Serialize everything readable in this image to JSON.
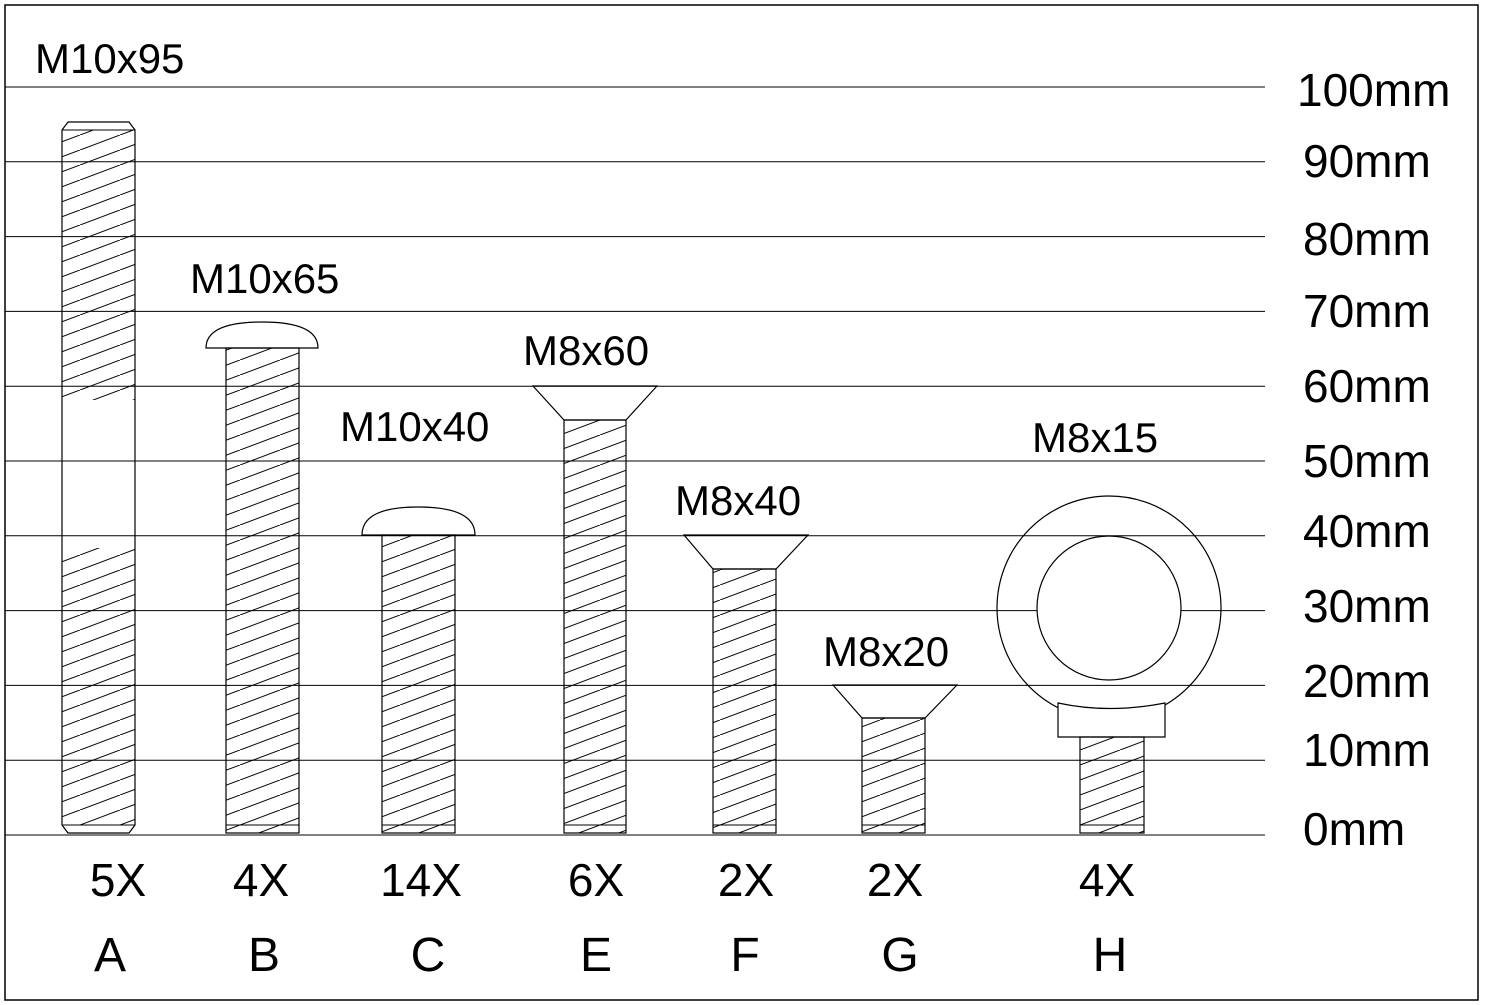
{
  "scale": {
    "unit": "mm",
    "ticks": [
      {
        "value": 0,
        "label": "0mm"
      },
      {
        "value": 10,
        "label": "10mm"
      },
      {
        "value": 20,
        "label": "20mm"
      },
      {
        "value": 30,
        "label": "30mm"
      },
      {
        "value": 40,
        "label": "40mm"
      },
      {
        "value": 50,
        "label": "50mm"
      },
      {
        "value": 60,
        "label": "60mm"
      },
      {
        "value": 70,
        "label": "70mm"
      },
      {
        "value": 80,
        "label": "80mm"
      },
      {
        "value": 90,
        "label": "90mm"
      },
      {
        "value": 100,
        "label": "100mm"
      }
    ]
  },
  "fasteners": [
    {
      "letter": "A",
      "size": "M10x95",
      "quantity": "5X",
      "type": "threaded-rod",
      "length_mm": 95
    },
    {
      "letter": "B",
      "size": "M10x65",
      "quantity": "4X",
      "type": "button-head-bolt",
      "length_mm": 65
    },
    {
      "letter": "C",
      "size": "M10x40",
      "quantity": "14X",
      "type": "button-head-bolt",
      "length_mm": 40
    },
    {
      "letter": "E",
      "size": "M8x60",
      "quantity": "6X",
      "type": "countersunk-bolt",
      "length_mm": 60
    },
    {
      "letter": "F",
      "size": "M8x40",
      "quantity": "2X",
      "type": "countersunk-bolt",
      "length_mm": 40
    },
    {
      "letter": "G",
      "size": "M8x20",
      "quantity": "2X",
      "type": "countersunk-bolt",
      "length_mm": 20
    },
    {
      "letter": "H",
      "size": "M8x15",
      "quantity": "4X",
      "type": "eye-bolt",
      "length_mm": 15
    }
  ]
}
